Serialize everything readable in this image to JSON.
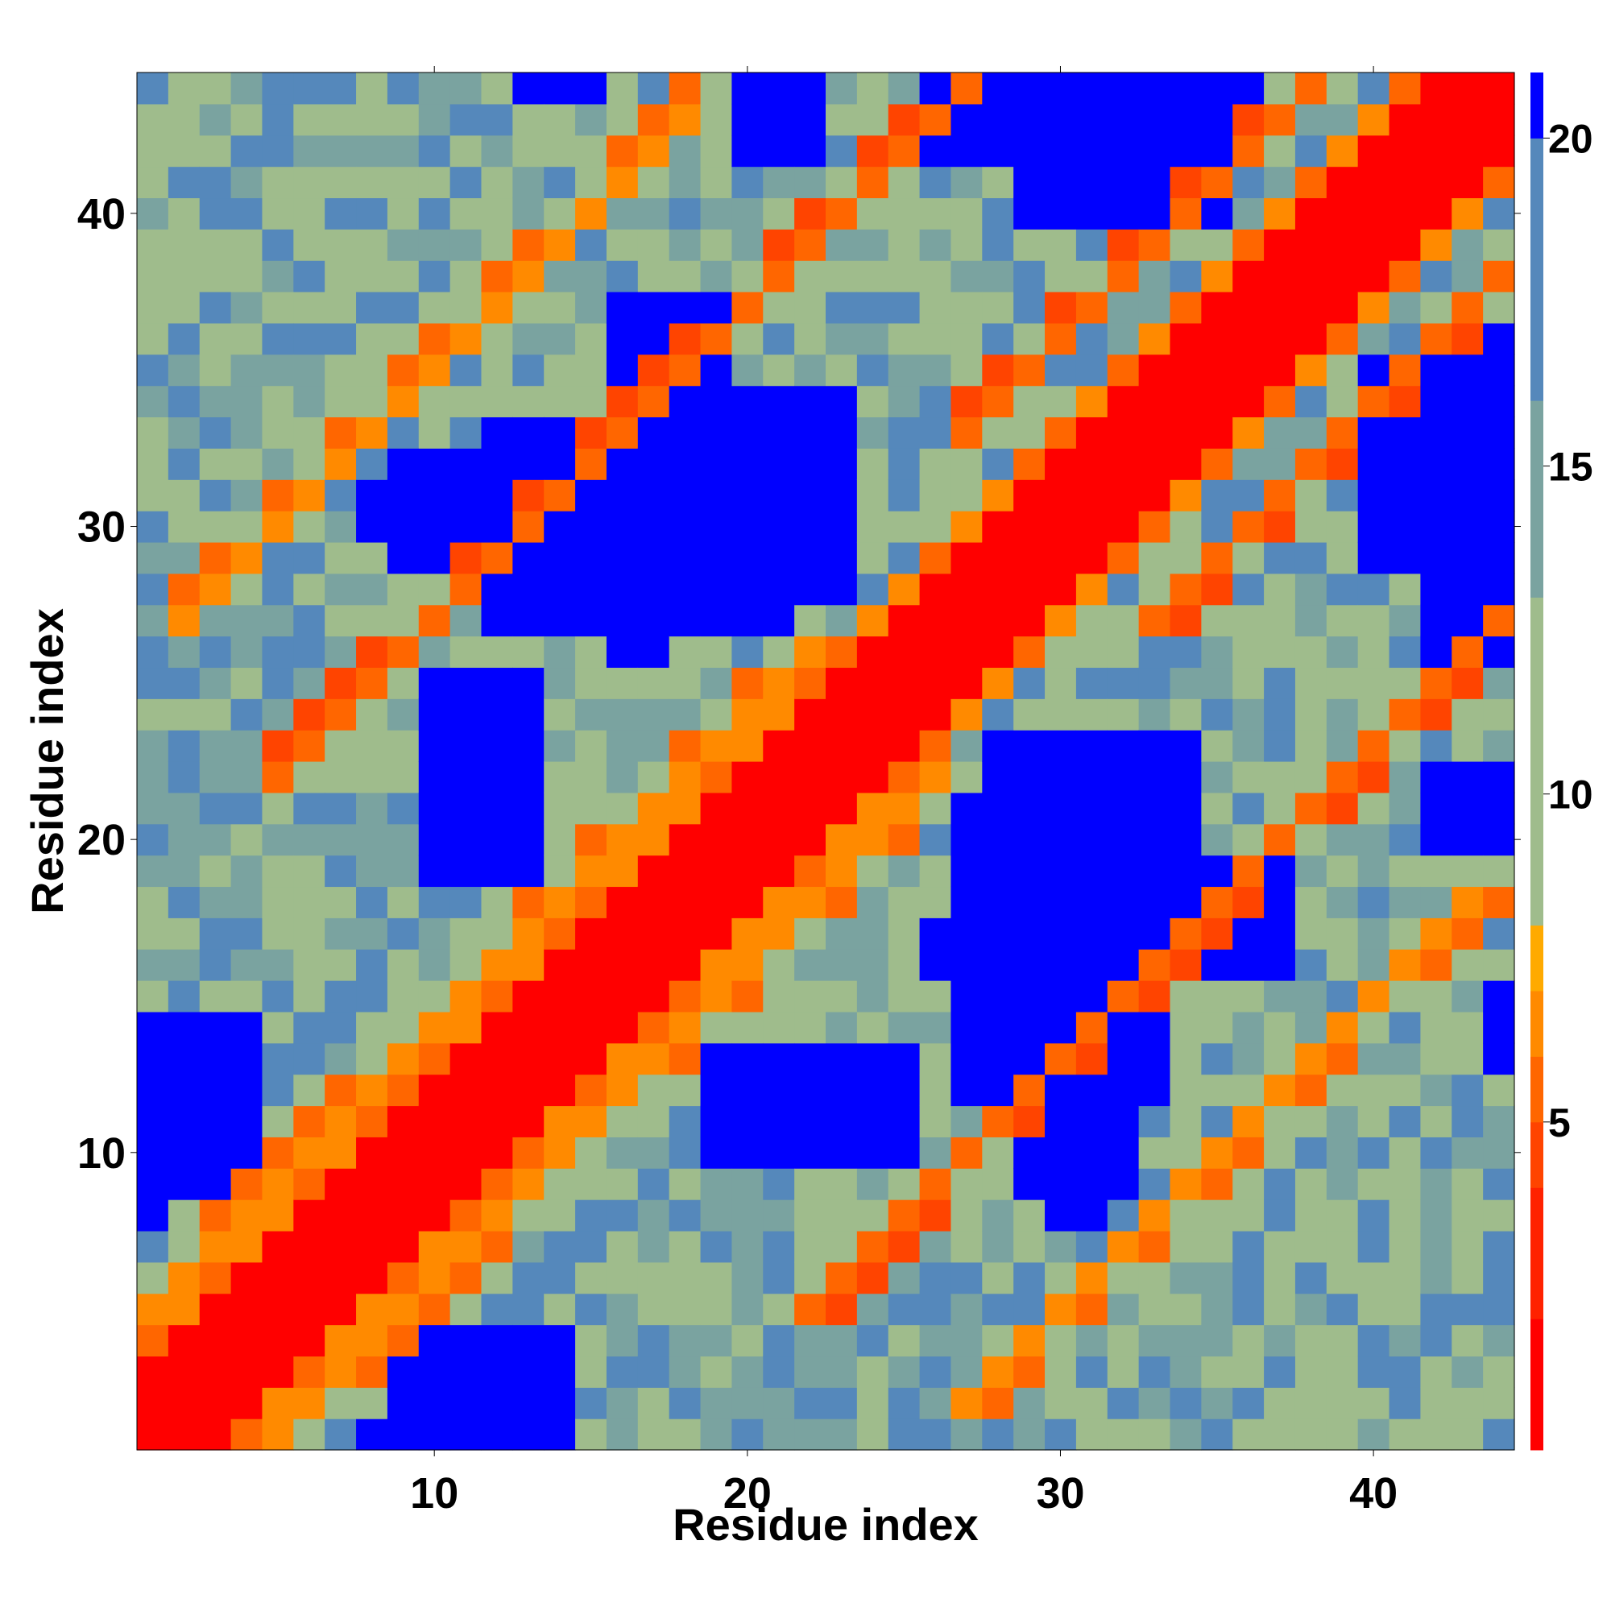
{
  "chart_data": {
    "type": "heatmap",
    "title": "",
    "xlabel": "Residue index",
    "ylabel": "Residue index",
    "x_range": [
      0.5,
      44.5
    ],
    "y_range": [
      0.5,
      44.5
    ],
    "x_ticks": [
      10,
      20,
      30,
      40
    ],
    "y_ticks": [
      10,
      20,
      30,
      40
    ],
    "colorbar": {
      "range": [
        0,
        21
      ],
      "ticks": [
        5,
        10,
        15,
        20
      ],
      "levels": [
        {
          "max": 2,
          "color": "#ff0000"
        },
        {
          "max": 4,
          "color": "#ff2200"
        },
        {
          "max": 5,
          "color": "#ff4400"
        },
        {
          "max": 6,
          "color": "#ff6600"
        },
        {
          "max": 7,
          "color": "#ff8a00"
        },
        {
          "max": 8,
          "color": "#ffaa00"
        },
        {
          "max": 13,
          "color": "#9fbc8c"
        },
        {
          "max": 16,
          "color": "#7aa3a0"
        },
        {
          "max": 20,
          "color": "#5588bb"
        },
        {
          "max": 21,
          "color": "#0000ff"
        }
      ]
    },
    "diagonal_band": {
      "max_offset": 2,
      "value": 1
    },
    "secondary_bands": [
      {
        "offset": 4,
        "x_from": 1,
        "x_to": 22,
        "value": 7
      },
      {
        "offset": 17,
        "x_from": 5,
        "x_to": 27,
        "value": 6
      },
      {
        "offset": 25,
        "x_from": 2,
        "x_to": 18,
        "value": 7
      },
      {
        "offset": 6,
        "x_from": 27,
        "x_to": 38,
        "value": 6
      }
    ],
    "far_regions": [
      {
        "x": [
          8,
          14
        ],
        "y": [
          1,
          1
        ],
        "value": 21
      },
      {
        "x": [
          10,
          13
        ],
        "y": [
          1,
          3
        ],
        "value": 21
      },
      {
        "x": [
          1,
          4
        ],
        "y": [
          9,
          14
        ],
        "value": 21
      },
      {
        "x": [
          19,
          24
        ],
        "y": [
          10,
          13
        ],
        "value": 21
      },
      {
        "x": [
          29,
          32
        ],
        "y": [
          9,
          17
        ],
        "value": 21
      },
      {
        "x": [
          26,
          36
        ],
        "y": [
          16,
          17
        ],
        "value": 21
      },
      {
        "x": [
          28,
          34
        ],
        "y": [
          16,
          23
        ],
        "value": 21
      },
      {
        "x": [
          10,
          13
        ],
        "y": [
          20,
          25
        ],
        "value": 21
      },
      {
        "x": [
          12,
          21
        ],
        "y": [
          27,
          33
        ],
        "value": 21
      },
      {
        "x": [
          8,
          16
        ],
        "y": [
          30,
          31
        ],
        "value": 21
      },
      {
        "x": [
          16,
          19
        ],
        "y": [
          33,
          37
        ],
        "value": 21
      },
      {
        "x": [
          42,
          44
        ],
        "y": [
          26,
          36
        ],
        "value": 21
      },
      {
        "x": [
          40,
          44
        ],
        "y": [
          30,
          35
        ],
        "value": 21
      },
      {
        "x": [
          26,
          36
        ],
        "y": [
          42,
          44
        ],
        "value": 21
      },
      {
        "x": [
          29,
          33
        ],
        "y": [
          40,
          44
        ],
        "value": 21
      },
      {
        "x": [
          13,
          15
        ],
        "y": [
          44,
          44
        ],
        "value": 21
      },
      {
        "x": [
          20,
          22
        ],
        "y": [
          43,
          44
        ],
        "value": 21
      },
      {
        "x": [
          42,
          43
        ],
        "y": [
          20,
          22
        ],
        "value": 21
      }
    ],
    "background_values": [
      9,
      12,
      15,
      18
    ]
  }
}
